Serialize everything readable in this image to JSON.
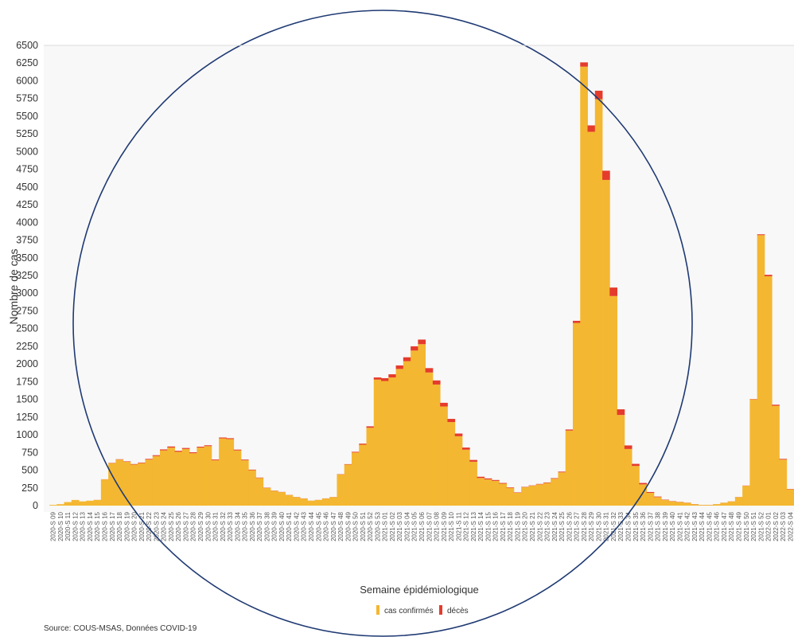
{
  "chart_data": {
    "type": "bar",
    "stacked": true,
    "title": "",
    "xlabel": "Semaine épidémiologique",
    "ylabel": "Nombre de cas",
    "ylim": [
      0,
      6500
    ],
    "yticks": [
      0,
      250,
      500,
      750,
      1000,
      1250,
      1500,
      1750,
      2000,
      2250,
      2500,
      2750,
      3000,
      3250,
      3500,
      3750,
      4000,
      4250,
      4500,
      4750,
      5000,
      5250,
      5500,
      5750,
      6000,
      6250,
      6500
    ],
    "grid": false,
    "legend_position": "bottom",
    "categories": [
      "2020-S 09",
      "2020-S 10",
      "2020-S 11",
      "2020-S 12",
      "2020-S 13",
      "2020-S 14",
      "2020-S 15",
      "2020-S 16",
      "2020-S 17",
      "2020-S 18",
      "2020-S 19",
      "2020-S 20",
      "2020-S 21",
      "2020-S 22",
      "2020-S 23",
      "2020-S 24",
      "2020-S 25",
      "2020-S 26",
      "2020-S 27",
      "2020-S 28",
      "2020-S 29",
      "2020-S 30",
      "2020-S 31",
      "2020-S 32",
      "2020-S 33",
      "2020-S 34",
      "2020-S 35",
      "2020-S 36",
      "2020-S 37",
      "2020-S 38",
      "2020-S 39",
      "2020-S 40",
      "2020-S 41",
      "2020-S 42",
      "2020-S 43",
      "2020-S 44",
      "2020-S 45",
      "2020-S 46",
      "2020-S 47",
      "2020-S 48",
      "2020-S 49",
      "2020-S 50",
      "2020-S 51",
      "2020-S 52",
      "2020-S 53",
      "2021-S 01",
      "2021-S 02",
      "2021-S 03",
      "2021-S 04",
      "2021-S 05",
      "2021-S 06",
      "2021-S 07",
      "2021-S 08",
      "2021-S 09",
      "2021-S 10",
      "2021-S 11",
      "2021-S 12",
      "2021-S 13",
      "2021-S 14",
      "2021-S 15",
      "2021-S 16",
      "2021-S 17",
      "2021-S 18",
      "2021-S 19",
      "2021-S 20",
      "2021-S 21",
      "2021-S 22",
      "2021-S 23",
      "2021-S 24",
      "2021-S 25",
      "2021-S 26",
      "2021-S 27",
      "2021-S 28",
      "2021-S 29",
      "2021-S 30",
      "2021-S 31",
      "2021-S 32",
      "2021-S 33",
      "2021-S 34",
      "2021-S 35",
      "2021-S 36",
      "2021-S 37",
      "2021-S 38",
      "2021-S 39",
      "2021-S 40",
      "2021-S 41",
      "2021-S 42",
      "2021-S 43",
      "2021-S 44",
      "2021-S 45",
      "2021-S 46",
      "2021-S 47",
      "2021-S 48",
      "2021-S 49",
      "2021-S 50",
      "2021-S 51",
      "2021-S 52",
      "2022-S 01",
      "2022-S 02",
      "2022-S 03",
      "2022-S 04"
    ],
    "series": [
      {
        "name": "cas confirmés",
        "color": "#F4B731",
        "values": [
          10,
          20,
          50,
          80,
          60,
          70,
          80,
          370,
          600,
          650,
          620,
          580,
          600,
          650,
          700,
          780,
          820,
          760,
          800,
          740,
          820,
          840,
          640,
          950,
          940,
          780,
          640,
          500,
          390,
          250,
          210,
          190,
          150,
          120,
          100,
          70,
          80,
          100,
          120,
          440,
          580,
          750,
          860,
          1100,
          1780,
          1760,
          1810,
          1930,
          2040,
          2190,
          2280,
          1880,
          1710,
          1400,
          1180,
          980,
          790,
          620,
          390,
          370,
          350,
          310,
          250,
          180,
          260,
          280,
          300,
          320,
          380,
          470,
          1060,
          2580,
          6200,
          5280,
          5740,
          4600,
          2960,
          1280,
          800,
          560,
          300,
          180,
          120,
          80,
          60,
          50,
          40,
          20,
          10,
          10,
          20,
          40,
          60,
          120,
          280,
          1500,
          3820,
          3240,
          1410,
          650,
          230
        ]
      },
      {
        "name": "décès",
        "color": "#E53B2C",
        "values": [
          0,
          0,
          0,
          0,
          0,
          0,
          1,
          2,
          4,
          5,
          6,
          7,
          8,
          10,
          12,
          14,
          15,
          14,
          14,
          13,
          12,
          12,
          11,
          12,
          12,
          11,
          10,
          8,
          6,
          4,
          3,
          3,
          2,
          2,
          2,
          1,
          1,
          2,
          2,
          4,
          6,
          10,
          15,
          20,
          30,
          40,
          45,
          50,
          55,
          60,
          65,
          62,
          58,
          52,
          45,
          38,
          30,
          25,
          18,
          14,
          12,
          10,
          8,
          6,
          5,
          5,
          6,
          7,
          8,
          10,
          15,
          30,
          60,
          90,
          120,
          130,
          120,
          80,
          50,
          30,
          20,
          12,
          8,
          5,
          4,
          3,
          2,
          2,
          1,
          1,
          1,
          1,
          1,
          2,
          3,
          5,
          12,
          20,
          15,
          10,
          5
        ]
      }
    ]
  },
  "legend": {
    "items": [
      {
        "label": "cas confirmés",
        "color": "#F4B731"
      },
      {
        "label": "décès",
        "color": "#E53B2C"
      }
    ]
  },
  "source": "Source: COUS-MSAS, Données COVID-19",
  "annotation": {
    "shape": "ellipse",
    "color": "#1F3A73"
  }
}
